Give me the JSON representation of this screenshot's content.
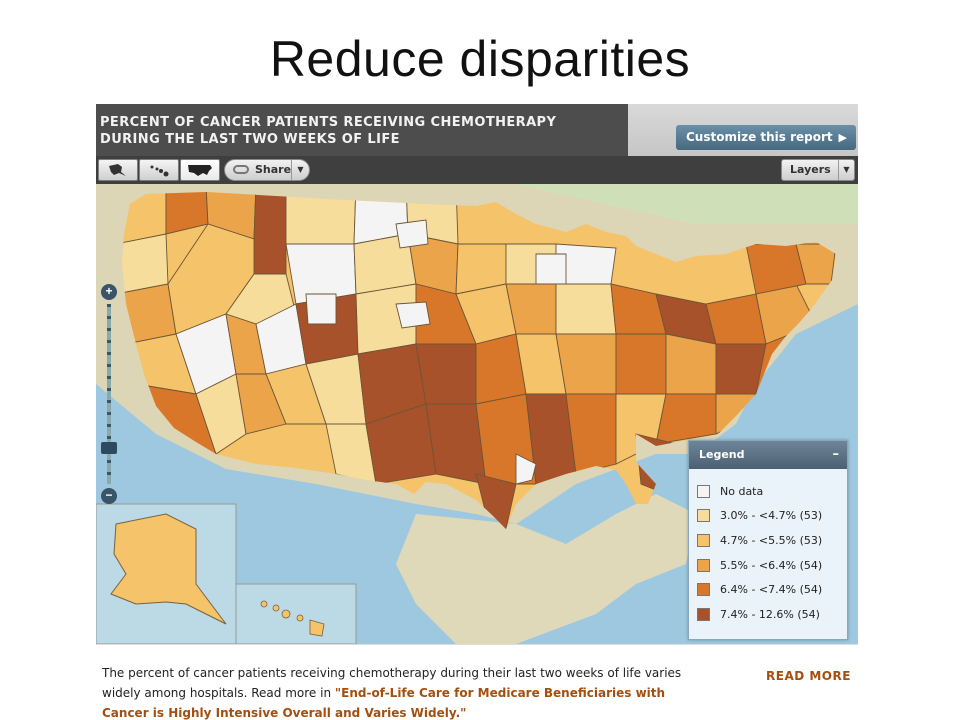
{
  "slide": {
    "title": "Reduce disparities"
  },
  "report": {
    "title": "PERCENT OF CANCER PATIENTS RECEIVING CHEMOTHERAPY\nDURING THE LAST TWO WEEKS OF LIFE",
    "customize_label": "Customize this report"
  },
  "toolbar": {
    "region_tabs": [
      "alaska-icon",
      "hawaii-icon",
      "us-map-icon"
    ],
    "share_label": "Share",
    "layers_label": "Layers"
  },
  "map": {
    "zoom_in": "+",
    "zoom_out": "−",
    "colors": {
      "water": "#9ec8df",
      "land": "#e3ddc0",
      "no_data": "#f4f4f4",
      "c1": "#f7dd9b",
      "c2": "#f4c36a",
      "c3": "#eca44a",
      "c4": "#d8772a",
      "c5": "#a8522b"
    }
  },
  "legend": {
    "title": "Legend",
    "collapse": "–",
    "items": [
      {
        "label": "No data",
        "color": "#f4f4f4"
      },
      {
        "label": "3.0% - <4.7% (53)",
        "color": "#f7dd9b"
      },
      {
        "label": "4.7% - <5.5% (53)",
        "color": "#f4c36a"
      },
      {
        "label": "5.5% - <6.4% (54)",
        "color": "#eca44a"
      },
      {
        "label": "6.4% - <7.4% (54)",
        "color": "#d8772a"
      },
      {
        "label": "7.4% - 12.6% (54)",
        "color": "#a8522b"
      }
    ]
  },
  "footer": {
    "text_1": "The percent of cancer patients receiving chemotherapy during their last two weeks of life varies widely among hospitals. Read more in ",
    "link": "\"End-of-Life Care for Medicare Beneficiaries with Cancer is Highly Intensive Overall and Varies Widely.\"",
    "read_more": "READ MORE"
  }
}
